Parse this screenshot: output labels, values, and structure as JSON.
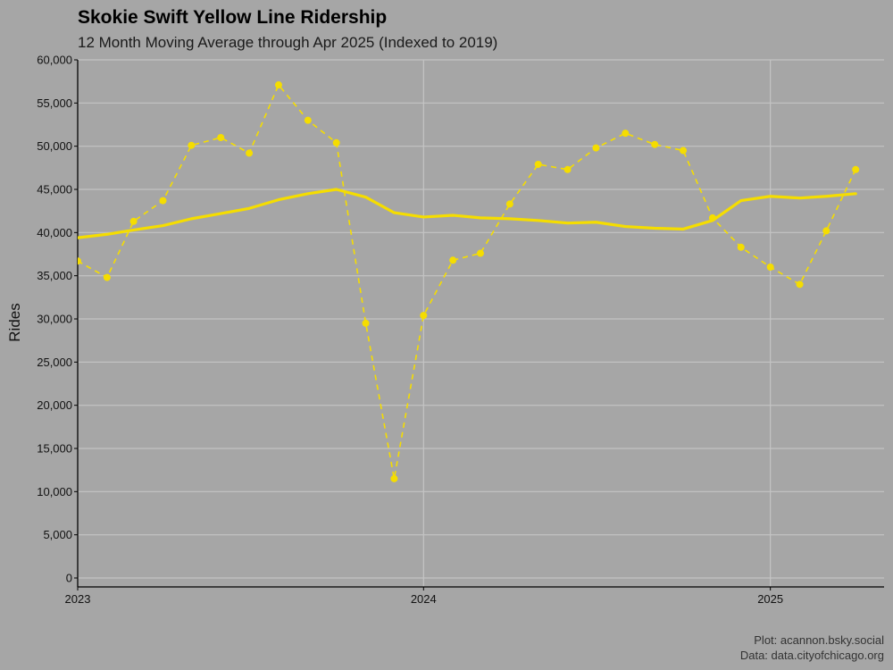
{
  "chart_data": {
    "type": "line",
    "title": "Skokie Swift Yellow Line Ridership",
    "subtitle": "12 Month Moving Average through Apr 2025 (Indexed to 2019)",
    "ylabel": "Rides",
    "xlabel": "",
    "caption_lines": [
      "Plot: acannon.bsky.social",
      "Data: data.cityofchicago.org"
    ],
    "ylim": [
      0,
      60000
    ],
    "yticks": [
      0,
      5000,
      10000,
      15000,
      20000,
      25000,
      30000,
      35000,
      40000,
      45000,
      50000,
      55000,
      60000
    ],
    "ytick_labels": [
      "0",
      "5,000",
      "10,000",
      "15,000",
      "20,000",
      "25,000",
      "30,000",
      "35,000",
      "40,000",
      "45,000",
      "50,000",
      "55,000",
      "60,000"
    ],
    "xlim": [
      "2023-01-01",
      "2025-05-01"
    ],
    "xticks": [
      "2023-01-01",
      "2024-01-01",
      "2025-01-01"
    ],
    "xtick_labels": [
      "2023",
      "2024",
      "2025"
    ],
    "grid": true,
    "legend": "none",
    "colors": {
      "background": "#a6a6a6",
      "grid": "#c4c4c4",
      "series": "#f5dd00",
      "axis": "#000000"
    },
    "series": [
      {
        "style": "dashed-with-points",
        "x": [
          "2023-01-01",
          "2023-02-01",
          "2023-03-01",
          "2023-04-01",
          "2023-05-01",
          "2023-06-01",
          "2023-07-01",
          "2023-08-01",
          "2023-09-01",
          "2023-10-01",
          "2023-11-01",
          "2023-12-01",
          "2024-01-01",
          "2024-02-01",
          "2024-03-01",
          "2024-04-01",
          "2024-05-01",
          "2024-06-01",
          "2024-07-01",
          "2024-08-01",
          "2024-09-01",
          "2024-10-01",
          "2024-11-01",
          "2024-12-01",
          "2025-01-01",
          "2025-02-01",
          "2025-03-01",
          "2025-04-01"
        ],
        "values": [
          36700,
          34800,
          41300,
          43700,
          50100,
          51000,
          49200,
          57100,
          53000,
          50400,
          29500,
          11500,
          30400,
          36800,
          37600,
          43300,
          47900,
          47300,
          49800,
          51500,
          50200,
          49500,
          41700,
          38300,
          36000,
          34000,
          40200,
          47300
        ]
      },
      {
        "style": "solid",
        "x": [
          "2023-01-01",
          "2023-02-01",
          "2023-03-01",
          "2023-04-01",
          "2023-05-01",
          "2023-06-01",
          "2023-07-01",
          "2023-08-01",
          "2023-09-01",
          "2023-10-01",
          "2023-11-01",
          "2023-12-01",
          "2024-01-01",
          "2024-02-01",
          "2024-03-01",
          "2024-04-01",
          "2024-05-01",
          "2024-06-01",
          "2024-07-01",
          "2024-08-01",
          "2024-09-01",
          "2024-10-01",
          "2024-11-01",
          "2024-12-01",
          "2025-01-01",
          "2025-02-01",
          "2025-03-01",
          "2025-04-01"
        ],
        "values": [
          39400,
          39800,
          40300,
          40800,
          41600,
          42200,
          42800,
          43800,
          44500,
          45000,
          44100,
          42300,
          41800,
          42000,
          41700,
          41600,
          41400,
          41100,
          41200,
          40700,
          40500,
          40400,
          41400,
          43700,
          44200,
          44000,
          44200,
          44500
        ]
      }
    ]
  }
}
